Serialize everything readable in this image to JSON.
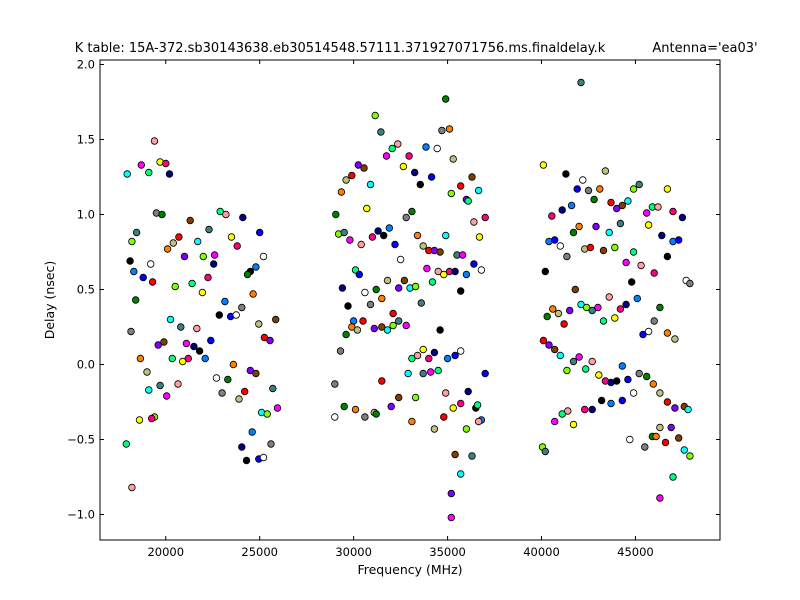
{
  "chart_data": {
    "type": "scatter",
    "title": "K table: 15A-372.sb30143638.eb30514548.57111.371927071756.ms.finaldelay.k",
    "subtitle": "Antenna='ea03'",
    "xlabel": "Frequency (MHz)",
    "ylabel": "Delay (nsec)",
    "xlim": [
      16500,
      49500
    ],
    "ylim": [
      -1.17,
      2.03
    ],
    "xticks": [
      20000,
      25000,
      30000,
      35000,
      40000,
      45000
    ],
    "xtick_labels": [
      "20000",
      "25000",
      "30000",
      "35000",
      "40000",
      "45000"
    ],
    "yticks": [
      -1.0,
      -0.5,
      0.0,
      0.5,
      1.0,
      1.5,
      2.0
    ],
    "ytick_labels": [
      "−1.0",
      "−0.5",
      "0.0",
      "0.5",
      "1.0",
      "1.5",
      "2.0"
    ],
    "grid": false,
    "legend": "none",
    "point_colors": [
      "#0000ff",
      "#008000",
      "#ff0000",
      "#00ffff",
      "#ff00ff",
      "#ffff00",
      "#000000",
      "#ffffff",
      "#ff7f00",
      "#7f00ff",
      "#7fff00",
      "#00ff7f",
      "#ff007f",
      "#007fff",
      "#7f7f7f",
      "#bfbf7f",
      "#7f3f00",
      "#3f7f7f",
      "#ff9f9f",
      "#000080"
    ],
    "points": [
      [
        17950,
        1.27
      ],
      [
        18200,
        0.82
      ],
      [
        18450,
        0.88
      ],
      [
        18700,
        1.33
      ],
      [
        19100,
        1.28
      ],
      [
        19400,
        1.49
      ],
      [
        19700,
        1.35
      ],
      [
        20000,
        1.34
      ],
      [
        20200,
        1.27
      ],
      [
        18100,
        0.69
      ],
      [
        18300,
        0.62
      ],
      [
        18800,
        0.58
      ],
      [
        19200,
        0.67
      ],
      [
        19500,
        1.01
      ],
      [
        19800,
        1.0
      ],
      [
        20100,
        0.77
      ],
      [
        20400,
        0.81
      ],
      [
        20700,
        0.85
      ],
      [
        21000,
        0.72
      ],
      [
        21300,
        0.96
      ],
      [
        21700,
        0.82
      ],
      [
        22000,
        0.72
      ],
      [
        22300,
        0.9
      ],
      [
        22600,
        0.73
      ],
      [
        22900,
        1.02
      ],
      [
        23200,
        1.0
      ],
      [
        23500,
        0.85
      ],
      [
        23800,
        0.79
      ],
      [
        24100,
        0.98
      ],
      [
        24500,
        0.62
      ],
      [
        24800,
        0.65
      ],
      [
        25000,
        0.88
      ],
      [
        25200,
        0.72
      ],
      [
        18150,
        0.22
      ],
      [
        18400,
        0.43
      ],
      [
        18650,
        0.04
      ],
      [
        19000,
        -0.05
      ],
      [
        19300,
        0.55
      ],
      [
        19600,
        0.13
      ],
      [
        19900,
        0.15
      ],
      [
        20250,
        0.3
      ],
      [
        20500,
        0.52
      ],
      [
        20800,
        0.25
      ],
      [
        21100,
        0.14
      ],
      [
        21400,
        0.54
      ],
      [
        21650,
        0.24
      ],
      [
        21950,
        0.48
      ],
      [
        22250,
        0.58
      ],
      [
        22550,
        0.67
      ],
      [
        22850,
        0.33
      ],
      [
        23150,
        0.42
      ],
      [
        23450,
        0.32
      ],
      [
        23750,
        0.33
      ],
      [
        24050,
        0.38
      ],
      [
        24350,
        0.6
      ],
      [
        24650,
        0.47
      ],
      [
        24950,
        0.27
      ],
      [
        25250,
        0.18
      ],
      [
        25550,
        0.16
      ],
      [
        25850,
        0.3
      ],
      [
        19100,
        -0.17
      ],
      [
        19400,
        -0.35
      ],
      [
        19700,
        -0.14
      ],
      [
        20050,
        -0.21
      ],
      [
        20350,
        0.04
      ],
      [
        20650,
        -0.13
      ],
      [
        20900,
        0.02
      ],
      [
        21200,
        0.04
      ],
      [
        21500,
        0.12
      ],
      [
        21800,
        0.09
      ],
      [
        22100,
        0.04
      ],
      [
        22400,
        0.16
      ],
      [
        22700,
        -0.09
      ],
      [
        23000,
        -0.19
      ],
      [
        23300,
        -0.1
      ],
      [
        23600,
        0.0
      ],
      [
        23900,
        -0.23
      ],
      [
        24200,
        -0.18
      ],
      [
        24500,
        -0.04
      ],
      [
        24800,
        -0.06
      ],
      [
        25100,
        -0.32
      ],
      [
        25400,
        -0.33
      ],
      [
        25700,
        -0.16
      ],
      [
        25950,
        -0.29
      ],
      [
        17900,
        -0.53
      ],
      [
        18200,
        -0.82
      ],
      [
        18600,
        -0.37
      ],
      [
        19250,
        -0.36
      ],
      [
        24050,
        -0.55
      ],
      [
        24300,
        -0.64
      ],
      [
        24600,
        -0.45
      ],
      [
        24950,
        -0.63
      ],
      [
        25200,
        -0.62
      ],
      [
        25600,
        -0.53
      ],
      [
        29050,
        1.0
      ],
      [
        29350,
        1.15
      ],
      [
        29600,
        1.23
      ],
      [
        29900,
        1.26
      ],
      [
        30250,
        1.33
      ],
      [
        30550,
        1.31
      ],
      [
        30900,
        1.2
      ],
      [
        31150,
        1.66
      ],
      [
        31450,
        1.55
      ],
      [
        31750,
        1.39
      ],
      [
        32050,
        1.44
      ],
      [
        32350,
        1.47
      ],
      [
        32650,
        1.32
      ],
      [
        32950,
        1.39
      ],
      [
        33250,
        1.28
      ],
      [
        33550,
        1.2
      ],
      [
        33850,
        1.45
      ],
      [
        34150,
        1.25
      ],
      [
        34450,
        1.44
      ],
      [
        34700,
        1.56
      ],
      [
        34900,
        1.77
      ],
      [
        35100,
        1.57
      ],
      [
        35300,
        1.37
      ],
      [
        35700,
        1.19
      ],
      [
        36000,
        1.1
      ],
      [
        36300,
        1.25
      ],
      [
        36650,
        1.16
      ],
      [
        29200,
        0.87
      ],
      [
        29500,
        0.88
      ],
      [
        29800,
        0.83
      ],
      [
        30100,
        0.63
      ],
      [
        30400,
        0.8
      ],
      [
        30700,
        1.04
      ],
      [
        31000,
        0.85
      ],
      [
        31300,
        0.89
      ],
      [
        31600,
        0.86
      ],
      [
        31900,
        0.91
      ],
      [
        32200,
        0.8
      ],
      [
        32500,
        0.7
      ],
      [
        32800,
        0.98
      ],
      [
        33100,
        1.02
      ],
      [
        33400,
        0.86
      ],
      [
        33700,
        0.79
      ],
      [
        34000,
        0.76
      ],
      [
        34300,
        0.76
      ],
      [
        34600,
        0.75
      ],
      [
        34900,
        0.86
      ],
      [
        35200,
        1.14
      ],
      [
        35500,
        0.73
      ],
      [
        35800,
        0.73
      ],
      [
        36100,
        1.09
      ],
      [
        36400,
        0.95
      ],
      [
        36700,
        0.85
      ],
      [
        37000,
        0.98
      ],
      [
        29400,
        0.51
      ],
      [
        29700,
        0.39
      ],
      [
        30000,
        0.29
      ],
      [
        30300,
        0.6
      ],
      [
        30600,
        0.48
      ],
      [
        30900,
        0.4
      ],
      [
        31200,
        0.5
      ],
      [
        31500,
        0.44
      ],
      [
        31800,
        0.56
      ],
      [
        32100,
        0.34
      ],
      [
        32400,
        0.51
      ],
      [
        32700,
        0.56
      ],
      [
        33000,
        0.51
      ],
      [
        33300,
        0.52
      ],
      [
        33600,
        0.41
      ],
      [
        33900,
        0.64
      ],
      [
        34200,
        0.55
      ],
      [
        34500,
        0.62
      ],
      [
        34800,
        0.6
      ],
      [
        35100,
        0.62
      ],
      [
        35400,
        0.62
      ],
      [
        35700,
        0.49
      ],
      [
        36000,
        0.6
      ],
      [
        36400,
        0.67
      ],
      [
        36800,
        0.63
      ],
      [
        29300,
        0.09
      ],
      [
        29600,
        0.2
      ],
      [
        29900,
        0.25
      ],
      [
        30200,
        0.23
      ],
      [
        30500,
        0.29
      ],
      [
        31100,
        0.24
      ],
      [
        31500,
        0.25
      ],
      [
        31800,
        0.23
      ],
      [
        32100,
        0.26
      ],
      [
        32400,
        0.29
      ],
      [
        32800,
        0.26
      ],
      [
        33100,
        0.04
      ],
      [
        33400,
        0.06
      ],
      [
        33700,
        0.1
      ],
      [
        34000,
        0.04
      ],
      [
        34300,
        0.08
      ],
      [
        34600,
        0.23
      ],
      [
        35000,
        0.04
      ],
      [
        35400,
        0.06
      ],
      [
        35700,
        0.09
      ],
      [
        29000,
        -0.13
      ],
      [
        29500,
        -0.28
      ],
      [
        30100,
        -0.3
      ],
      [
        31100,
        -0.32
      ],
      [
        31500,
        -0.11
      ],
      [
        32000,
        -0.28
      ],
      [
        32400,
        -0.22
      ],
      [
        32900,
        -0.06
      ],
      [
        33300,
        -0.22
      ],
      [
        33700,
        -0.06
      ],
      [
        34100,
        -0.05
      ],
      [
        34500,
        -0.04
      ],
      [
        34900,
        -0.19
      ],
      [
        35300,
        -0.29
      ],
      [
        35700,
        -0.26
      ],
      [
        36100,
        -0.18
      ],
      [
        36500,
        -0.29
      ],
      [
        36800,
        -0.37
      ],
      [
        37000,
        -0.06
      ],
      [
        29000,
        -0.35
      ],
      [
        30600,
        -0.35
      ],
      [
        31200,
        -0.33
      ],
      [
        33100,
        -0.38
      ],
      [
        34300,
        -0.43
      ],
      [
        34800,
        -0.35
      ],
      [
        35200,
        -0.86
      ],
      [
        35400,
        -0.6
      ],
      [
        35700,
        -0.73
      ],
      [
        36000,
        -0.43
      ],
      [
        36300,
        -0.61
      ],
      [
        35200,
        -1.02
      ],
      [
        36600,
        -0.27
      ],
      [
        36650,
        -0.38
      ],
      [
        40100,
        1.33
      ],
      [
        40550,
        0.99
      ],
      [
        41100,
        1.03
      ],
      [
        41300,
        1.27
      ],
      [
        41600,
        1.06
      ],
      [
        41900,
        1.17
      ],
      [
        42200,
        1.23
      ],
      [
        42500,
        1.16
      ],
      [
        42800,
        1.1
      ],
      [
        43100,
        1.17
      ],
      [
        43400,
        1.29
      ],
      [
        43700,
        1.08
      ],
      [
        44000,
        1.04
      ],
      [
        44300,
        1.06
      ],
      [
        44600,
        1.09
      ],
      [
        44900,
        1.17
      ],
      [
        45200,
        1.2
      ],
      [
        45600,
        1.01
      ],
      [
        45900,
        1.05
      ],
      [
        46200,
        1.05
      ],
      [
        46700,
        1.17
      ],
      [
        47000,
        1.02
      ],
      [
        47500,
        0.98
      ],
      [
        40200,
        0.62
      ],
      [
        40400,
        0.82
      ],
      [
        40700,
        0.83
      ],
      [
        41000,
        0.79
      ],
      [
        41350,
        0.72
      ],
      [
        41700,
        0.88
      ],
      [
        42000,
        0.92
      ],
      [
        42300,
        0.77
      ],
      [
        42600,
        0.78
      ],
      [
        42900,
        0.92
      ],
      [
        43300,
        0.76
      ],
      [
        43600,
        0.88
      ],
      [
        43900,
        0.78
      ],
      [
        44200,
        0.94
      ],
      [
        44500,
        0.68
      ],
      [
        44900,
        0.75
      ],
      [
        45300,
        0.66
      ],
      [
        45700,
        0.93
      ],
      [
        46000,
        0.61
      ],
      [
        46400,
        0.86
      ],
      [
        46700,
        0.72
      ],
      [
        47000,
        0.82
      ],
      [
        47300,
        0.83
      ],
      [
        47700,
        0.56
      ],
      [
        47900,
        0.54
      ],
      [
        40300,
        0.32
      ],
      [
        40600,
        0.37
      ],
      [
        40900,
        0.34
      ],
      [
        41200,
        0.27
      ],
      [
        41500,
        0.36
      ],
      [
        41800,
        0.5
      ],
      [
        42100,
        0.4
      ],
      [
        42400,
        0.38
      ],
      [
        42700,
        0.36
      ],
      [
        43000,
        0.38
      ],
      [
        43300,
        0.29
      ],
      [
        43600,
        0.45
      ],
      [
        43900,
        0.31
      ],
      [
        44200,
        0.37
      ],
      [
        44500,
        0.4
      ],
      [
        44800,
        0.55
      ],
      [
        45100,
        0.44
      ],
      [
        45400,
        0.2
      ],
      [
        45700,
        0.22
      ],
      [
        46000,
        0.29
      ],
      [
        46300,
        0.38
      ],
      [
        46700,
        0.21
      ],
      [
        47100,
        0.17
      ],
      [
        40100,
        0.16
      ],
      [
        40400,
        0.13
      ],
      [
        40700,
        0.1
      ],
      [
        41000,
        0.06
      ],
      [
        41350,
        -0.04
      ],
      [
        41700,
        0.02
      ],
      [
        42000,
        0.05
      ],
      [
        42350,
        -0.03
      ],
      [
        42700,
        0.02
      ],
      [
        43050,
        -0.07
      ],
      [
        43400,
        -0.11
      ],
      [
        43700,
        -0.12
      ],
      [
        44000,
        -0.11
      ],
      [
        44300,
        -0.01
      ],
      [
        44600,
        -0.1
      ],
      [
        44900,
        -0.19
      ],
      [
        45200,
        -0.06
      ],
      [
        45600,
        -0.08
      ],
      [
        45950,
        -0.13
      ],
      [
        46300,
        -0.19
      ],
      [
        46700,
        -0.25
      ],
      [
        47100,
        -0.29
      ],
      [
        47600,
        -0.28
      ],
      [
        47800,
        -0.3
      ],
      [
        40050,
        -0.55
      ],
      [
        40200,
        -0.58
      ],
      [
        40700,
        -0.38
      ],
      [
        41100,
        -0.33
      ],
      [
        41400,
        -0.31
      ],
      [
        41700,
        -0.4
      ],
      [
        42300,
        -0.3
      ],
      [
        42700,
        -0.3
      ],
      [
        43200,
        -0.24
      ],
      [
        43700,
        -0.26
      ],
      [
        44300,
        -0.24
      ],
      [
        44700,
        -0.5
      ],
      [
        45500,
        -0.55
      ],
      [
        45900,
        -0.48
      ],
      [
        46100,
        -0.48
      ],
      [
        46300,
        -0.42
      ],
      [
        46600,
        -0.52
      ],
      [
        46900,
        -0.42
      ],
      [
        47300,
        -0.49
      ],
      [
        47600,
        -0.57
      ],
      [
        47900,
        -0.61
      ],
      [
        42100,
        1.88
      ],
      [
        46300,
        -0.89
      ],
      [
        47000,
        -0.75
      ]
    ]
  }
}
